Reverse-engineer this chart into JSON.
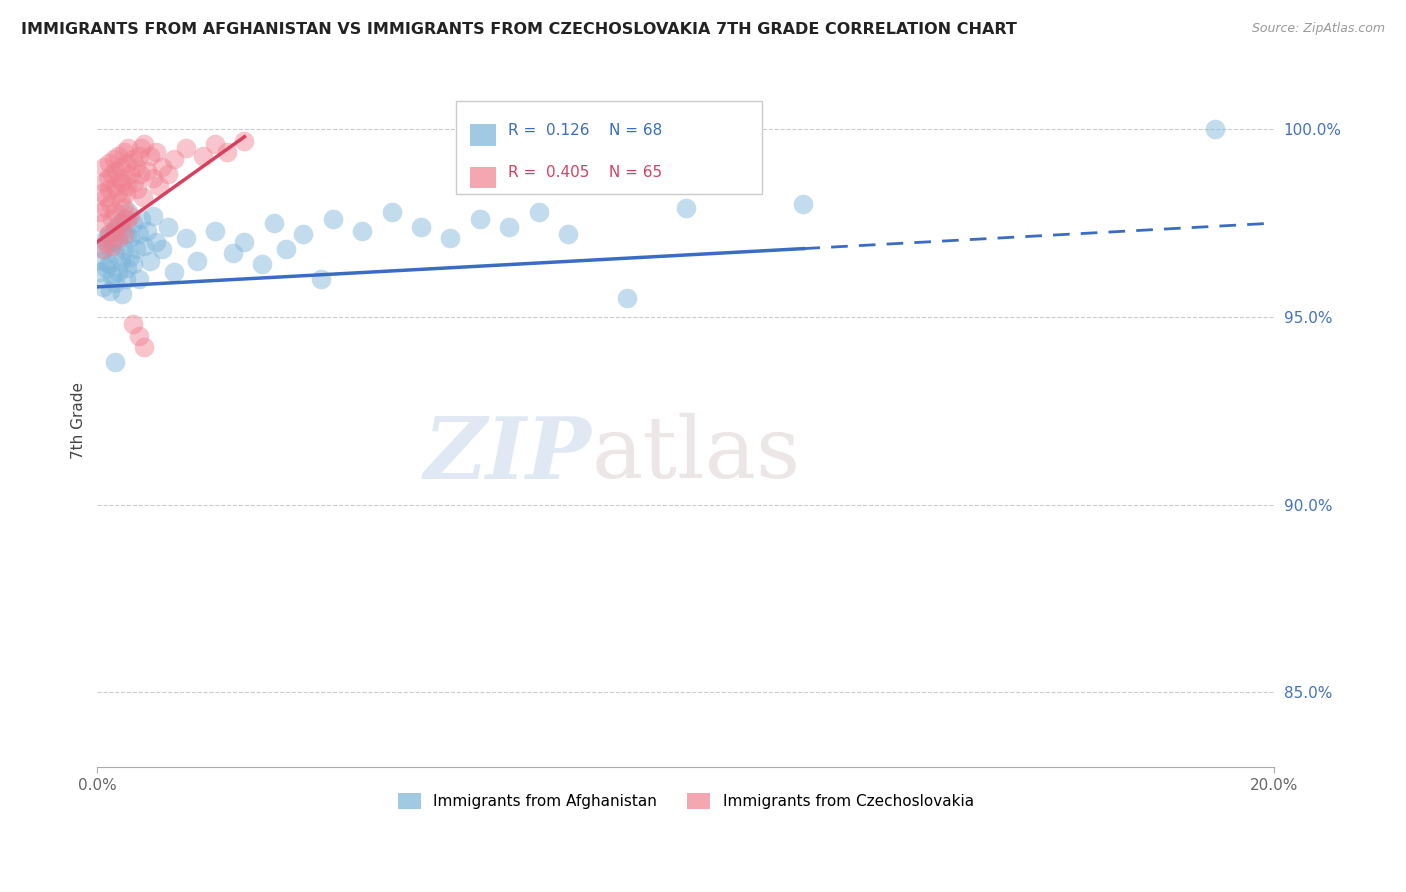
{
  "title": "IMMIGRANTS FROM AFGHANISTAN VS IMMIGRANTS FROM CZECHOSLOVAKIA 7TH GRADE CORRELATION CHART",
  "source": "Source: ZipAtlas.com",
  "ylabel": "7th Grade",
  "x_range": [
    0.0,
    20.0
  ],
  "y_range": [
    83.0,
    101.5
  ],
  "afghanistan_R": 0.126,
  "afghanistan_N": 68,
  "czechoslovakia_R": 0.405,
  "czechoslovakia_N": 65,
  "afghanistan_color": "#7ab3d9",
  "czechoslovakia_color": "#f08090",
  "afghanistan_line_color": "#3a6cc4",
  "czechoslovakia_line_color": "#d94060",
  "legend_label_afghanistan": "Immigrants from Afghanistan",
  "legend_label_czechoslovakia": "Immigrants from Czechoslovakia",
  "watermark_zip": "ZIP",
  "watermark_atlas": "atlas",
  "afghanistan_x": [
    0.05,
    0.08,
    0.1,
    0.12,
    0.15,
    0.15,
    0.18,
    0.2,
    0.2,
    0.22,
    0.25,
    0.25,
    0.28,
    0.3,
    0.3,
    0.32,
    0.35,
    0.35,
    0.38,
    0.4,
    0.4,
    0.42,
    0.45,
    0.45,
    0.48,
    0.5,
    0.5,
    0.52,
    0.55,
    0.55,
    0.6,
    0.6,
    0.65,
    0.7,
    0.7,
    0.75,
    0.8,
    0.85,
    0.9,
    0.95,
    1.0,
    1.1,
    1.2,
    1.3,
    1.5,
    1.7,
    2.0,
    2.3,
    2.5,
    2.8,
    3.0,
    3.2,
    3.5,
    3.8,
    4.0,
    4.5,
    5.0,
    5.5,
    6.0,
    6.5,
    7.0,
    7.5,
    8.0,
    9.0,
    10.0,
    12.0,
    19.0,
    0.3
  ],
  "afghanistan_y": [
    96.2,
    96.5,
    95.8,
    96.8,
    96.3,
    97.1,
    96.9,
    96.4,
    97.2,
    95.7,
    97.0,
    96.1,
    97.3,
    95.9,
    96.7,
    97.4,
    96.2,
    97.0,
    97.5,
    96.5,
    97.3,
    95.6,
    96.8,
    97.6,
    96.0,
    97.2,
    96.3,
    97.8,
    96.6,
    97.1,
    96.4,
    97.5,
    96.8,
    97.2,
    96.0,
    97.6,
    96.9,
    97.3,
    96.5,
    97.7,
    97.0,
    96.8,
    97.4,
    96.2,
    97.1,
    96.5,
    97.3,
    96.7,
    97.0,
    96.4,
    97.5,
    96.8,
    97.2,
    96.0,
    97.6,
    97.3,
    97.8,
    97.4,
    97.1,
    97.6,
    97.4,
    97.8,
    97.2,
    95.5,
    97.9,
    98.0,
    100.0,
    93.8
  ],
  "czechoslovakia_x": [
    0.05,
    0.08,
    0.1,
    0.12,
    0.12,
    0.15,
    0.15,
    0.18,
    0.2,
    0.2,
    0.22,
    0.25,
    0.25,
    0.28,
    0.3,
    0.3,
    0.32,
    0.35,
    0.35,
    0.38,
    0.4,
    0.4,
    0.42,
    0.45,
    0.45,
    0.48,
    0.5,
    0.5,
    0.52,
    0.55,
    0.55,
    0.6,
    0.62,
    0.65,
    0.68,
    0.7,
    0.72,
    0.75,
    0.78,
    0.8,
    0.85,
    0.9,
    0.95,
    1.0,
    1.05,
    1.1,
    1.2,
    1.3,
    1.5,
    1.8,
    2.0,
    2.2,
    2.5,
    0.1,
    0.15,
    0.2,
    0.25,
    0.3,
    0.35,
    0.4,
    0.45,
    0.5,
    0.6,
    0.7,
    0.8
  ],
  "czechoslovakia_y": [
    97.8,
    98.3,
    97.5,
    98.6,
    99.0,
    98.2,
    97.9,
    98.7,
    98.4,
    99.1,
    98.0,
    98.8,
    97.6,
    99.2,
    98.5,
    97.8,
    98.9,
    98.3,
    99.3,
    98.7,
    98.1,
    99.0,
    98.6,
    97.9,
    99.4,
    98.3,
    99.1,
    98.5,
    99.5,
    98.8,
    97.7,
    99.2,
    98.6,
    99.0,
    98.4,
    99.3,
    98.8,
    99.5,
    98.2,
    99.6,
    98.9,
    99.3,
    98.7,
    99.4,
    98.5,
    99.0,
    98.8,
    99.2,
    99.5,
    99.3,
    99.6,
    99.4,
    99.7,
    96.8,
    97.0,
    97.2,
    96.9,
    97.3,
    97.1,
    97.5,
    97.2,
    97.6,
    94.8,
    94.5,
    94.2
  ]
}
